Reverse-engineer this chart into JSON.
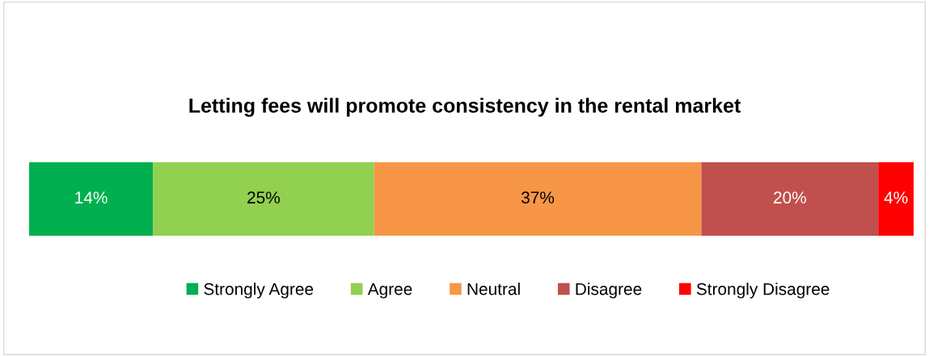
{
  "chart_data": {
    "type": "bar",
    "orientation": "horizontal",
    "stacked": true,
    "title": "Letting fees will promote consistency in the rental market",
    "categories": [
      null
    ],
    "legend": "bottom",
    "series": [
      {
        "name": "Strongly Agree",
        "color": "#00b050",
        "values": [
          14
        ],
        "value_labels": [
          "14%"
        ]
      },
      {
        "name": "Agree",
        "color": "#92d050",
        "values": [
          25
        ],
        "value_labels": [
          "25%"
        ]
      },
      {
        "name": "Neutral",
        "color": "#f79646",
        "values": [
          37
        ],
        "value_labels": [
          "37%"
        ]
      },
      {
        "name": "Disagree",
        "color": "#c0504d",
        "values": [
          20
        ],
        "value_labels": [
          "20%"
        ]
      },
      {
        "name": "Strongly Disagree",
        "color": "#ff0000",
        "values": [
          4
        ],
        "value_labels": [
          "4%"
        ]
      }
    ]
  }
}
